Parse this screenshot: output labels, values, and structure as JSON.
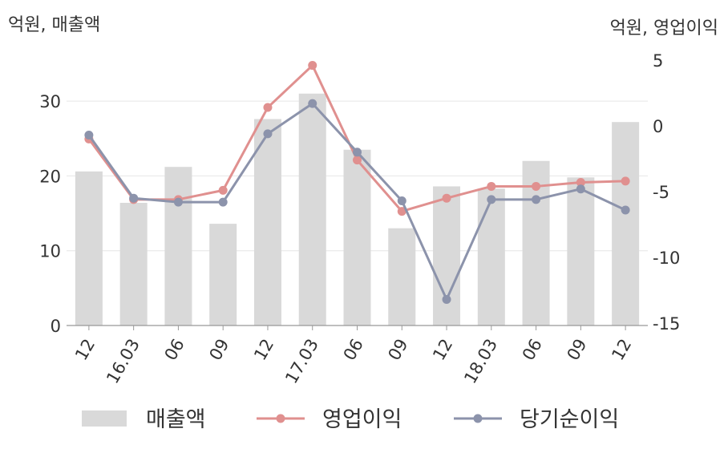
{
  "chart_data": {
    "type": "bar+line",
    "categories": [
      "12",
      "16.03",
      "06",
      "09",
      "12",
      "17.03",
      "06",
      "09",
      "12",
      "18.03",
      "06",
      "09",
      "12"
    ],
    "left_axis": {
      "title": "억원, 매출액",
      "range": [
        0,
        35
      ],
      "ticks": [
        0,
        10,
        20,
        30
      ]
    },
    "right_axis": {
      "title": "억원, 영업이익",
      "range": [
        -15,
        5
      ],
      "ticks": [
        5,
        0,
        -5,
        -10,
        -15
      ]
    },
    "series": [
      {
        "name": "매출액",
        "kind": "bar",
        "axis": "left",
        "color": "#d9d9d9",
        "values": [
          20.6,
          16.4,
          21.2,
          13.6,
          27.6,
          31.0,
          23.5,
          13.0,
          18.6,
          18.3,
          22.0,
          19.8,
          27.2
        ]
      },
      {
        "name": "영업이익",
        "kind": "line",
        "axis": "right",
        "color": "#e0908f",
        "values": [
          -1.0,
          -5.6,
          -5.6,
          -4.9,
          1.4,
          4.6,
          -2.6,
          -6.5,
          -5.5,
          -4.6,
          -4.6,
          -4.3,
          -4.2
        ]
      },
      {
        "name": "당기순이익",
        "kind": "line",
        "axis": "right",
        "color": "#8c93ab",
        "values": [
          -0.7,
          -5.5,
          -5.8,
          -5.8,
          -0.6,
          1.7,
          -2.0,
          -5.7,
          -13.2,
          -5.6,
          -5.6,
          -4.8,
          -6.4
        ]
      }
    ],
    "grid": true,
    "legend_position": "bottom"
  }
}
